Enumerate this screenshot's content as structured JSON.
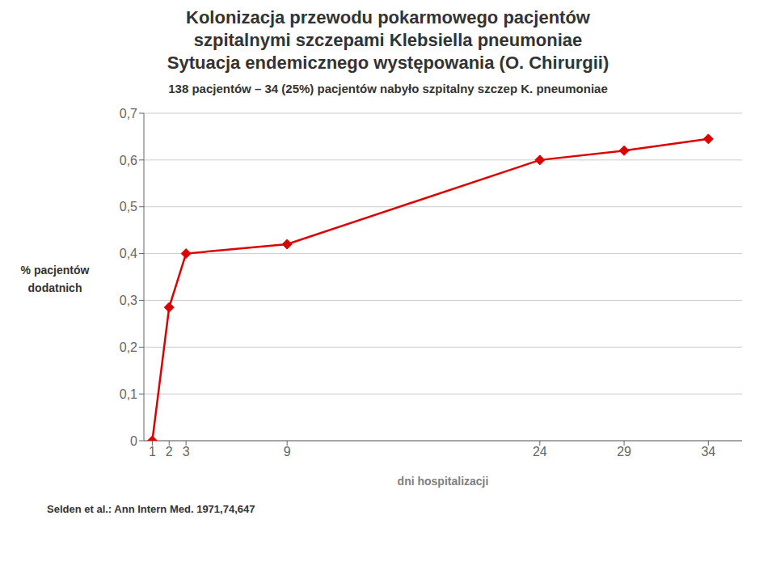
{
  "chart_data": {
    "type": "line",
    "title": [
      "Kolonizacja przewodu pokarmowego pacjentów",
      "szpitalnymi szczepami Klebsiella pneumoniae",
      "Sytuacja endemicznego występowania (O. Chirurgii)"
    ],
    "subtitle": "138 pacjentów – 34 (25%)  pacjentów nabyło szpitalny szczep K. pneumoniae",
    "x_label": "dni hospitalizacji",
    "y_label": [
      "% pacjentów",
      "dodatnich"
    ],
    "annotations": [
      "Selden et al.: Ann Intern Med. 1971,74,647"
    ],
    "x": [
      1,
      2,
      3,
      9,
      24,
      29,
      34
    ],
    "values": [
      0.0,
      0.285,
      0.4,
      0.42,
      0.6,
      0.62,
      0.645
    ],
    "color": "#dd0000",
    "marker": "diamond",
    "xlim": [
      0.5,
      36
    ],
    "xticks": [
      1,
      2,
      3,
      9,
      24,
      29,
      34
    ],
    "ylim": [
      0,
      0.7
    ],
    "yticks": [
      0,
      {
        "value": 0.1,
        "label": "0,1"
      },
      {
        "value": 0.2,
        "label": "0,2"
      },
      {
        "value": 0.3,
        "label": "0,3"
      },
      {
        "value": 0.4,
        "label": "0,4"
      },
      {
        "value": 0.5,
        "label": "0,5"
      },
      {
        "value": 0.6,
        "label": "0,6"
      },
      {
        "value": 0.7,
        "label": "0,7"
      }
    ],
    "grid": true
  }
}
